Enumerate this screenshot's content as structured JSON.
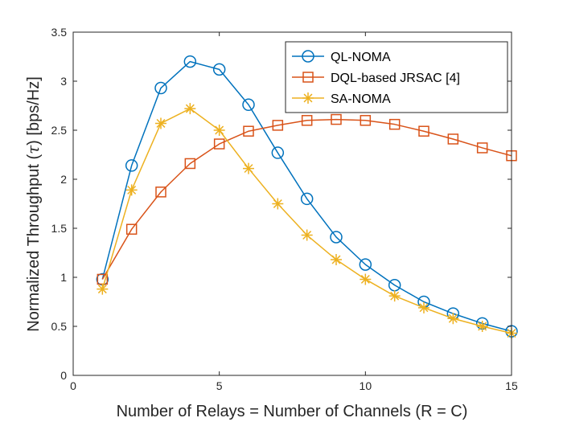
{
  "chart_data": {
    "type": "line",
    "title": "",
    "xlabel": "Number of Relays = Number of Channels (R = C)",
    "ylabel_pre": "Normalized Throughput (",
    "ylabel_sym": "τ",
    "ylabel_post": ") [bps/Hz]",
    "xlim": [
      0,
      15
    ],
    "ylim": [
      0,
      3.5
    ],
    "xticks": [
      0,
      5,
      10,
      15
    ],
    "xtick_labels": [
      "0",
      "5",
      "10",
      "15"
    ],
    "yticks": [
      0,
      0.5,
      1,
      1.5,
      2,
      2.5,
      3,
      3.5
    ],
    "ytick_labels": [
      "0",
      "0.5",
      "1",
      "1.5",
      "2",
      "2.5",
      "3",
      "3.5"
    ],
    "grid": false,
    "legend_position": "top-right",
    "x": [
      1,
      2,
      3,
      4,
      5,
      6,
      7,
      8,
      9,
      10,
      11,
      12,
      13,
      14,
      15
    ],
    "series": [
      {
        "name": "QL-NOMA",
        "color": "#0072BD",
        "marker": "circle",
        "values": [
          0.98,
          2.14,
          2.93,
          3.2,
          3.12,
          2.76,
          2.27,
          1.8,
          1.41,
          1.13,
          0.92,
          0.75,
          0.63,
          0.53,
          0.45
        ]
      },
      {
        "name": "DQL-based JRSAC [4]",
        "color": "#D95319",
        "marker": "square",
        "values": [
          0.98,
          1.49,
          1.87,
          2.16,
          2.36,
          2.49,
          2.55,
          2.6,
          2.61,
          2.6,
          2.56,
          2.49,
          2.41,
          2.32,
          2.24
        ]
      },
      {
        "name": "SA-NOMA",
        "color": "#EDB120",
        "marker": "asterisk",
        "values": [
          0.88,
          1.89,
          2.57,
          2.72,
          2.5,
          2.11,
          1.75,
          1.43,
          1.18,
          0.98,
          0.81,
          0.69,
          0.58,
          0.5,
          0.43
        ]
      }
    ]
  }
}
